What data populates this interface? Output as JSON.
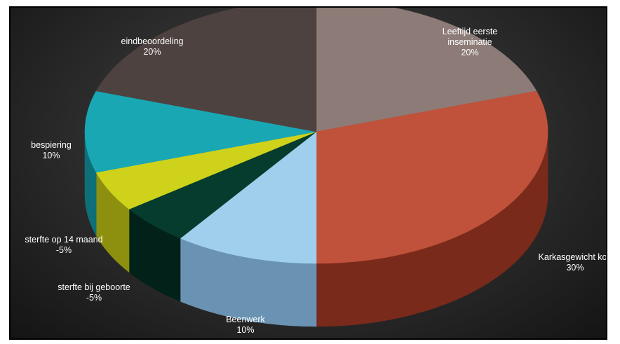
{
  "chart_data": {
    "type": "pie",
    "style": "3d",
    "categories": [
      "Leeftijd eerste inseminatie",
      "Karkasgewicht koe",
      "Beenwerk",
      "sterfte bij geboorte",
      "sterfte op 14 maand",
      "bespiering",
      "eindbeoordeling"
    ],
    "values": [
      20,
      30,
      10,
      -5,
      -5,
      10,
      20
    ],
    "value_labels": [
      "20%",
      "30%",
      "10%",
      "-5%",
      "-5%",
      "10%",
      "20%"
    ],
    "label_lines": [
      [
        "Leeftijd eerste",
        "inseminatie"
      ],
      [
        "Karkasgewicht koe"
      ],
      [
        "Beenwerk"
      ],
      [
        "sterfte bij geboorte"
      ],
      [
        "sterfte op 14 maand"
      ],
      [
        "bespiering"
      ],
      [
        "eindbeoordeling"
      ]
    ],
    "colors": [
      "#8c7b76",
      "#c0523b",
      "#9fcfec",
      "#063c2e",
      "#cfd21a",
      "#19a7b4",
      "#4d423f"
    ],
    "side_colors": [
      "#5e4f4b",
      "#7a2a1b",
      "#6a93b3",
      "#022118",
      "#8d8f0e",
      "#0f6f78",
      "#2c2523"
    ],
    "title": "",
    "legend": "none"
  }
}
